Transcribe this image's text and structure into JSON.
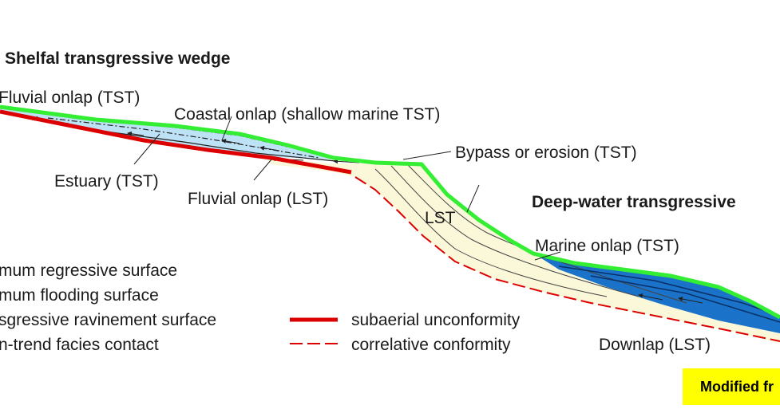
{
  "title_shelf": "Shelfal transgressive wedge",
  "title_deep": "Deep-water transgressive",
  "labels": {
    "fluvial_onlap_tst": "Fluvial onlap (TST)",
    "coastal_onlap": "Coastal onlap (shallow marine TST)",
    "bypass": "Bypass or erosion (TST)",
    "estuary": "Estuary (TST)",
    "fluvial_onlap_lst": "Fluvial onlap (LST)",
    "lst": "LST",
    "marine_onlap": "Marine onlap (TST)",
    "downlap": "Downlap (LST)"
  },
  "legend": {
    "left": [
      "mum regressive surface",
      "mum flooding surface",
      "sgressive ravinement surface",
      "n-trend facies contact"
    ],
    "right": [
      "subaerial unconformity",
      "correlative conformity"
    ]
  },
  "credit": "Modified fr",
  "colors": {
    "flooding_surface": "#33ee33",
    "unconformity": "#dd0000",
    "shelf_tst_fill": "#bde2f5",
    "deep_tst_fill": "#1a73c9",
    "lst_fill": "#fbf8d9",
    "badge": "#ffff00"
  }
}
